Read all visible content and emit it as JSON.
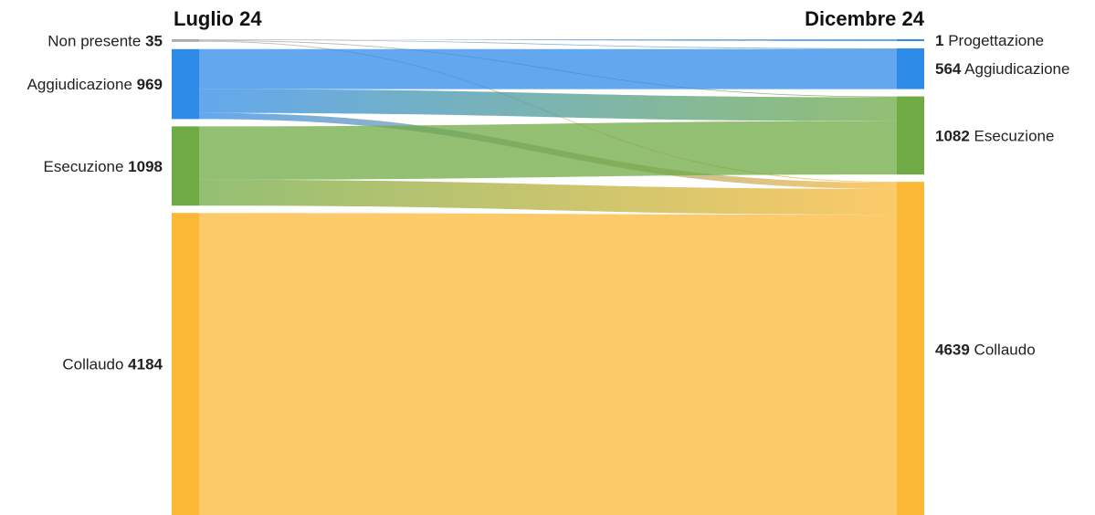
{
  "chart_data": {
    "type": "sankey",
    "left_header": "Luglio 24",
    "right_header": "Dicembre 24",
    "left_nodes": [
      {
        "key": "np",
        "name": "Non presente",
        "value": 35,
        "color": "#a8a8a8"
      },
      {
        "key": "agg",
        "name": "Aggiudicazione",
        "value": 969,
        "color": "#2f8be8"
      },
      {
        "key": "ese",
        "name": "Esecuzione",
        "value": 1098,
        "color": "#6faa44"
      },
      {
        "key": "col",
        "name": "Collaudo",
        "value": 4184,
        "color": "#fbb836"
      }
    ],
    "right_nodes": [
      {
        "key": "prog",
        "name": "Progettazione",
        "value": 1,
        "color": "#2f8be8"
      },
      {
        "key": "agg",
        "name": "Aggiudicazione",
        "value": 564,
        "color": "#2f8be8"
      },
      {
        "key": "ese",
        "name": "Esecuzione",
        "value": 1082,
        "color": "#6faa44"
      },
      {
        "key": "col",
        "name": "Collaudo",
        "value": 4639,
        "color": "#fbb836"
      }
    ],
    "flows": [
      {
        "from": "np",
        "to": "prog",
        "value": 1
      },
      {
        "from": "np",
        "to": "agg",
        "value": 10
      },
      {
        "from": "np",
        "to": "ese",
        "value": 12
      },
      {
        "from": "np",
        "to": "col",
        "value": 12
      },
      {
        "from": "agg",
        "to": "agg",
        "value": 554
      },
      {
        "from": "agg",
        "to": "ese",
        "value": 330
      },
      {
        "from": "agg",
        "to": "col",
        "value": 85
      },
      {
        "from": "ese",
        "to": "ese",
        "value": 740
      },
      {
        "from": "ese",
        "to": "col",
        "value": 358
      },
      {
        "from": "col",
        "to": "col",
        "value": 4184
      }
    ]
  }
}
